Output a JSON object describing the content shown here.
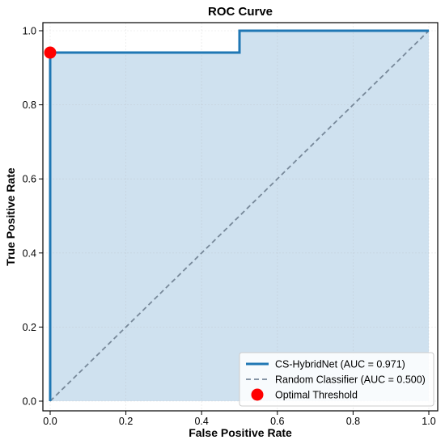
{
  "chart_data": {
    "type": "line",
    "title": "ROC Curve",
    "xlabel": "False Positive Rate",
    "ylabel": "True Positive Rate",
    "xlim": [
      0,
      1
    ],
    "ylim": [
      0,
      1
    ],
    "xticks": [
      "0.0",
      "0.2",
      "0.4",
      "0.6",
      "0.8",
      "1.0"
    ],
    "yticks": [
      "0.0",
      "0.2",
      "0.4",
      "0.6",
      "0.8",
      "1.0"
    ],
    "grid": true,
    "legend_position": "lower-right",
    "series": [
      {
        "name": "CS-HybridNet (AUC = 0.971)",
        "style": "solid",
        "color": "#1f77b4",
        "fill": true,
        "fill_color": "#cfe1ef",
        "x": [
          0.0,
          0.0,
          0.0,
          0.5,
          0.5,
          1.0
        ],
        "y": [
          0.0,
          0.941,
          0.941,
          0.941,
          1.0,
          1.0
        ]
      },
      {
        "name": "Random Classifier (AUC = 0.500)",
        "style": "dashed",
        "color": "#778899",
        "x": [
          0.0,
          1.0
        ],
        "y": [
          0.0,
          1.0
        ]
      },
      {
        "name": "Optimal Threshold",
        "style": "marker",
        "color": "#ff0000",
        "x": [
          0.0
        ],
        "y": [
          0.941
        ]
      }
    ]
  }
}
